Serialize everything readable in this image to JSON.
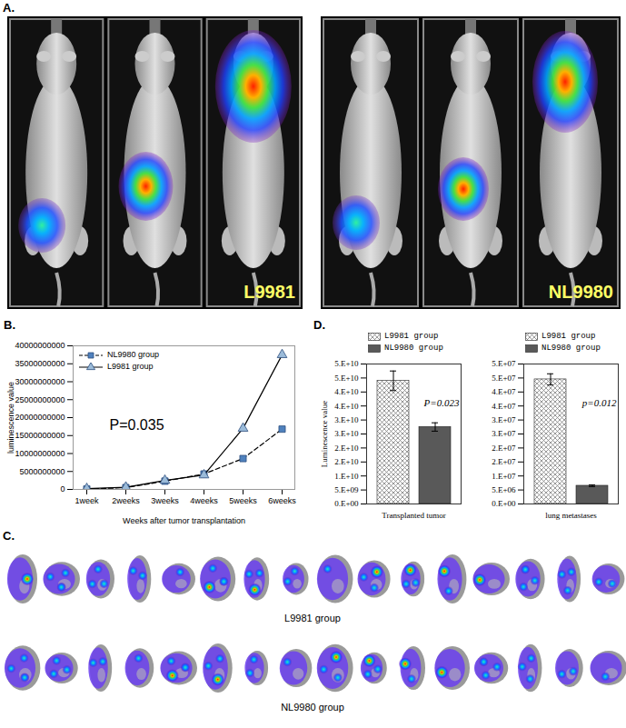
{
  "chart_data": [
    {
      "type": "image",
      "title": "A.",
      "annotations": [
        "L9981",
        "NL9980"
      ]
    },
    {
      "type": "line",
      "title": "B.",
      "x_label": "Weeks after tumor transplantation",
      "y_label": "luminescence value",
      "categories": [
        "1week",
        "2weeks",
        "3weeks",
        "4weeks",
        "5weeks",
        "6weeks"
      ],
      "ylim": [
        0,
        40000000000
      ],
      "yticks": [
        0,
        5000000000,
        10000000000,
        15000000000,
        20000000000,
        25000000000,
        30000000000,
        35000000000,
        40000000000
      ],
      "legend": "upper left",
      "annotations": [
        "P=0.035"
      ],
      "series": [
        {
          "name": "NL9980 group",
          "color": "#4f81bd",
          "marker": "square",
          "line_style": "dashed",
          "values": [
            100000000,
            500000000,
            2300000000,
            4300000000,
            8600000000,
            16800000000
          ]
        },
        {
          "name": "L9981 group",
          "color": "#9bbbd9",
          "marker": "triangle",
          "line_style": "solid",
          "values": [
            200000000,
            600000000,
            2500000000,
            4000000000,
            17000000000,
            37500000000
          ]
        }
      ]
    },
    {
      "type": "image",
      "title": "C.",
      "annotations": [
        "L9981 group",
        "NL9980 group"
      ]
    },
    {
      "type": "bar",
      "title": "D.",
      "y_label": "Luminescence value",
      "categories": [
        "Transplanted tumor"
      ],
      "ylim": [
        0,
        50000000000
      ],
      "yticks": [
        {
          "value": 0,
          "label": "0.E+00"
        },
        {
          "value": 5000000000,
          "label": "5.E+09"
        },
        {
          "value": 10000000000,
          "label": "1.E+10"
        },
        {
          "value": 15000000000,
          "label": "2.E+10"
        },
        {
          "value": 20000000000,
          "label": "2.E+10"
        },
        {
          "value": 25000000000,
          "label": "3.E+10"
        },
        {
          "value": 30000000000,
          "label": "3.E+10"
        },
        {
          "value": 35000000000,
          "label": "4.E+10"
        },
        {
          "value": 40000000000,
          "label": "4.E+10"
        },
        {
          "value": 45000000000,
          "label": "5.E+10"
        },
        {
          "value": 50000000000,
          "label": "5.E+10"
        }
      ],
      "legend": "upper left",
      "annotations": [
        "P=0.023"
      ],
      "series": [
        {
          "name": "L9981 group",
          "color": "#808080",
          "values": [
            44000000000
          ],
          "errors": [
            3500000000
          ]
        },
        {
          "name": "NL9980 group",
          "color": "#595959",
          "values": [
            27500000000
          ],
          "errors": [
            1500000000
          ]
        }
      ]
    },
    {
      "type": "bar",
      "categories": [
        "lung metastases"
      ],
      "ylim": [
        0,
        50000000
      ],
      "yticks": [
        {
          "value": 0,
          "label": "0.E+00"
        },
        {
          "value": 5000000,
          "label": "5.E+06"
        },
        {
          "value": 10000000,
          "label": "1.E+07"
        },
        {
          "value": 15000000,
          "label": "2.E+07"
        },
        {
          "value": 20000000,
          "label": "2.E+07"
        },
        {
          "value": 25000000,
          "label": "3.E+07"
        },
        {
          "value": 30000000,
          "label": "3.E+07"
        },
        {
          "value": 35000000,
          "label": "4.E+07"
        },
        {
          "value": 40000000,
          "label": "4.E+07"
        },
        {
          "value": 45000000,
          "label": "5.E+07"
        },
        {
          "value": 50000000,
          "label": "5.E+07"
        }
      ],
      "legend": "upper left",
      "annotations": [
        "p=0.012"
      ],
      "series": [
        {
          "name": "L9981 group",
          "color": "#808080",
          "values": [
            44500000
          ],
          "errors": [
            2000000
          ]
        },
        {
          "name": "NL9980 group",
          "color": "#595959",
          "values": [
            6500000
          ],
          "errors": [
            300000
          ]
        }
      ]
    }
  ]
}
